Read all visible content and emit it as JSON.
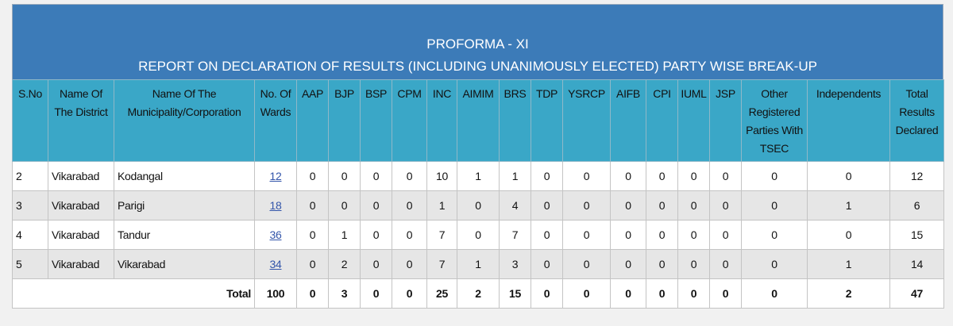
{
  "header": {
    "title": "PROFORMA - XI",
    "subtitle": "REPORT ON DECLARATION OF RESULTS (INCLUDING UNANIMOUSLY ELECTED) PARTY WISE BREAK-UP"
  },
  "table": {
    "columns": [
      "S.No",
      "Name Of The District",
      "Name Of The Municipality/Corporation",
      "No. Of Wards",
      "AAP",
      "BJP",
      "BSP",
      "CPM",
      "INC",
      "AIMIM",
      "BRS",
      "TDP",
      "YSRCP",
      "AIFB",
      "CPI",
      "IUML",
      "JSP",
      "Other Registered Parties With TSEC",
      "Independents",
      "Total Results Declared"
    ],
    "rows": [
      [
        2,
        "Vikarabad",
        "Kodangal",
        12,
        0,
        0,
        0,
        0,
        10,
        1,
        1,
        0,
        0,
        0,
        0,
        0,
        0,
        0,
        0,
        12
      ],
      [
        3,
        "Vikarabad",
        "Parigi",
        18,
        0,
        0,
        0,
        0,
        1,
        0,
        4,
        0,
        0,
        0,
        0,
        0,
        0,
        0,
        1,
        6
      ],
      [
        4,
        "Vikarabad",
        "Tandur",
        36,
        0,
        1,
        0,
        0,
        7,
        0,
        7,
        0,
        0,
        0,
        0,
        0,
        0,
        0,
        0,
        15
      ],
      [
        5,
        "Vikarabad",
        "Vikarabad",
        34,
        0,
        2,
        0,
        0,
        7,
        1,
        3,
        0,
        0,
        0,
        0,
        0,
        0,
        0,
        1,
        14
      ]
    ],
    "total": {
      "label": "Total",
      "values": [
        100,
        0,
        3,
        0,
        0,
        25,
        2,
        15,
        0,
        0,
        0,
        0,
        0,
        0,
        0,
        2,
        47
      ]
    }
  }
}
